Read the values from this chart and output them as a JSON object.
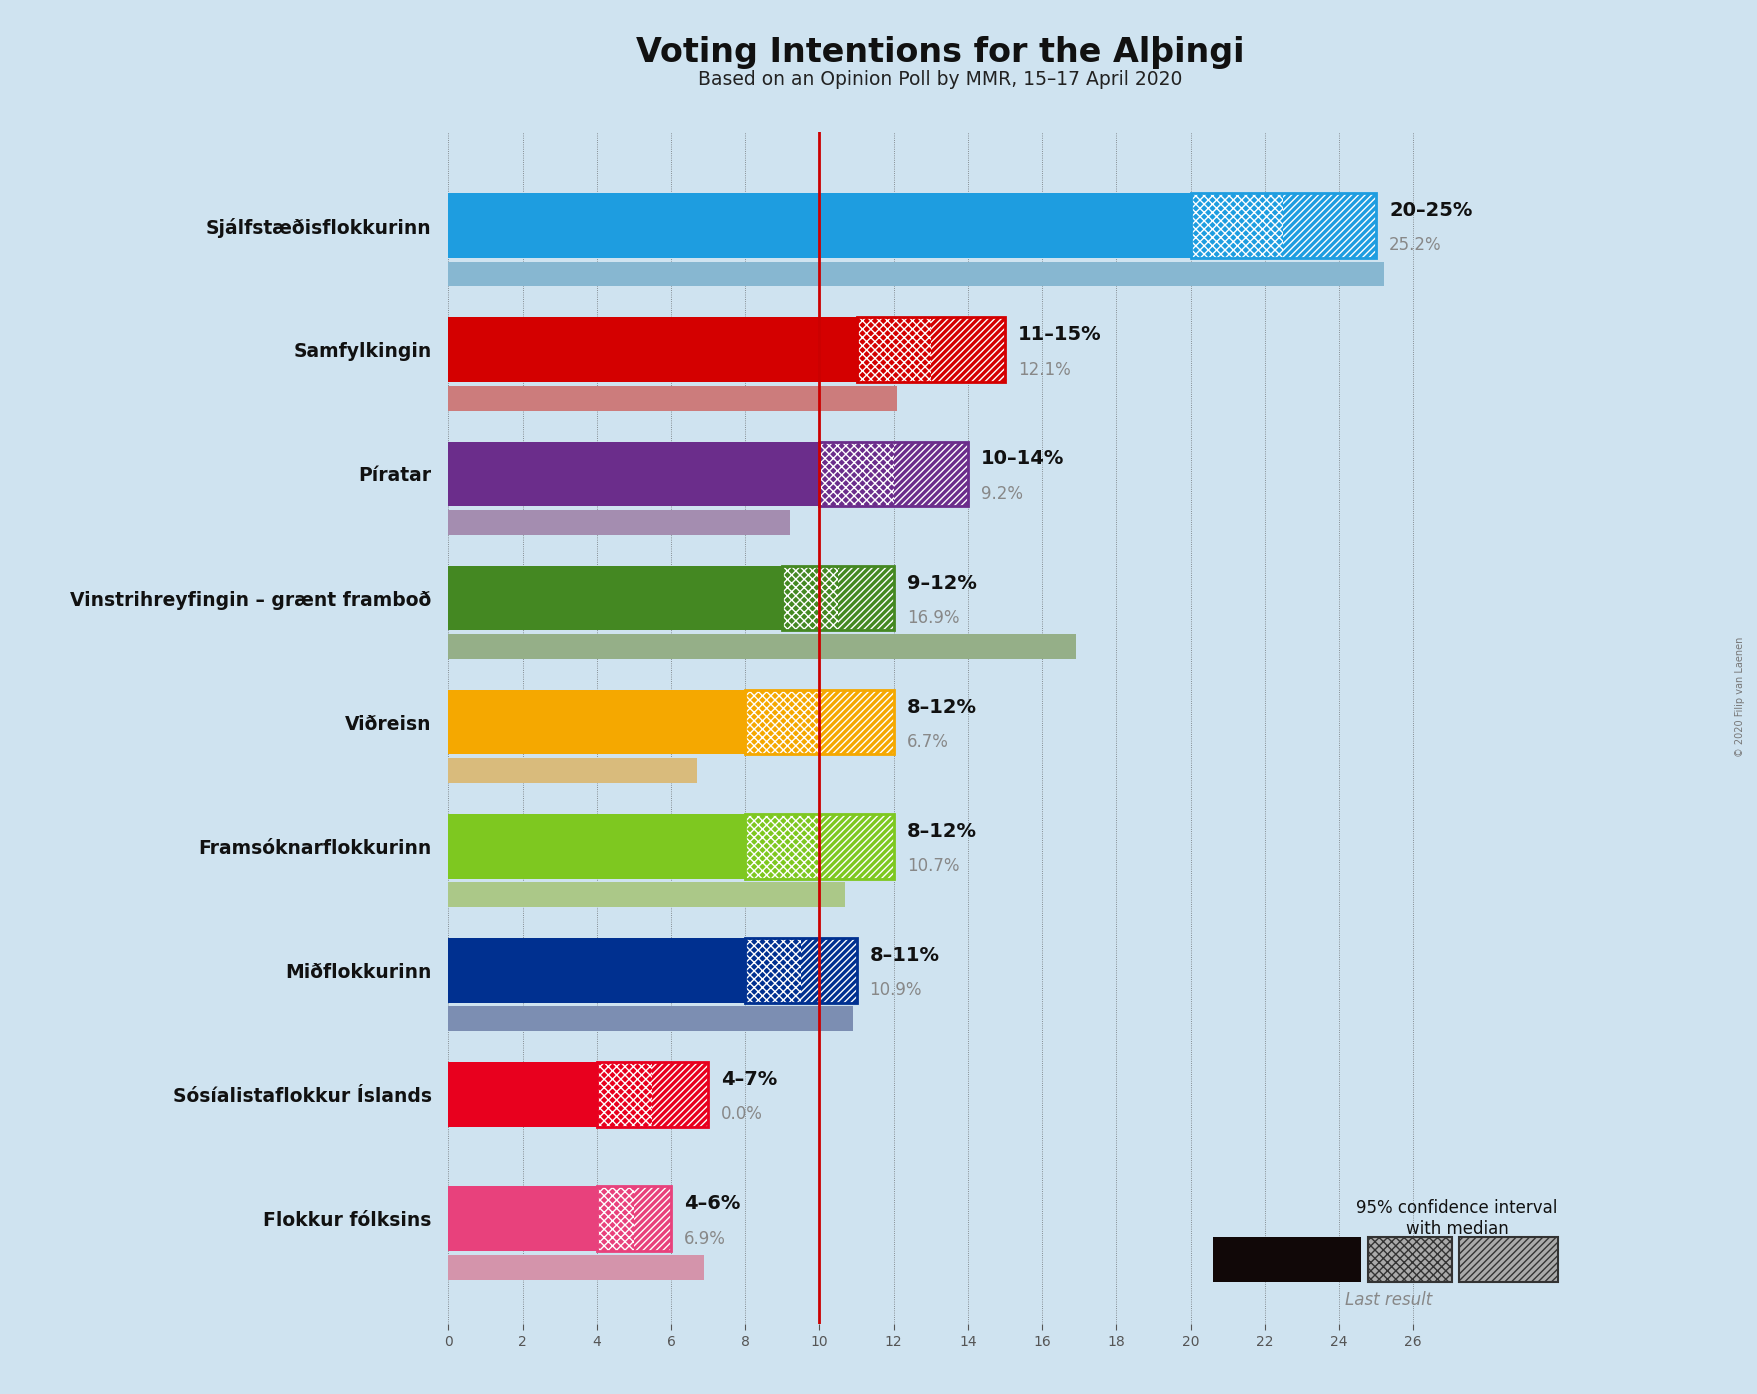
{
  "title": "Voting Intentions for the Alþingi",
  "subtitle": "Based on an Opinion Poll by MMR, 15–17 April 2020",
  "copyright": "© 2020 Filip van Laenen",
  "background_color": "#cfe3f0",
  "parties": [
    {
      "name": "Sjálfstæðisflokkurinn",
      "color": "#1e9de0",
      "ci_low": 20,
      "ci_high": 25,
      "last_result": 25.2,
      "label": "20–25%",
      "last_label": "25.2%"
    },
    {
      "name": "Samfylkingin",
      "color": "#d40000",
      "ci_low": 11,
      "ci_high": 15,
      "last_result": 12.1,
      "label": "11–15%",
      "last_label": "12.1%"
    },
    {
      "name": "Píratar",
      "color": "#6b2d8b",
      "ci_low": 10,
      "ci_high": 14,
      "last_result": 9.2,
      "label": "10–14%",
      "last_label": "9.2%"
    },
    {
      "name": "Vinstrihreyfingin – grænt framboð",
      "color": "#448822",
      "ci_low": 9,
      "ci_high": 12,
      "last_result": 16.9,
      "label": "9–12%",
      "last_label": "16.9%"
    },
    {
      "name": "Viðreisn",
      "color": "#f5a800",
      "ci_low": 8,
      "ci_high": 12,
      "last_result": 6.7,
      "label": "8–12%",
      "last_label": "6.7%"
    },
    {
      "name": "Framsóknarflokkurinn",
      "color": "#7ec820",
      "ci_low": 8,
      "ci_high": 12,
      "last_result": 10.7,
      "label": "8–12%",
      "last_label": "10.7%"
    },
    {
      "name": "Miðflokkurinn",
      "color": "#003090",
      "ci_low": 8,
      "ci_high": 11,
      "last_result": 10.9,
      "label": "8–11%",
      "last_label": "10.9%"
    },
    {
      "name": "Sósíalistaflokkur Íslands",
      "color": "#e8001e",
      "ci_low": 4,
      "ci_high": 7,
      "last_result": 0.0,
      "label": "4–7%",
      "last_label": "0.0%"
    },
    {
      "name": "Flokkur fólksins",
      "color": "#e8417c",
      "ci_low": 4,
      "ci_high": 6,
      "last_result": 6.9,
      "label": "4–6%",
      "last_label": "6.9%"
    }
  ],
  "xlim_max": 27,
  "red_line_x": 10.0,
  "bar_height": 0.52,
  "last_bar_height": 0.2,
  "last_bar_gap": 0.03
}
